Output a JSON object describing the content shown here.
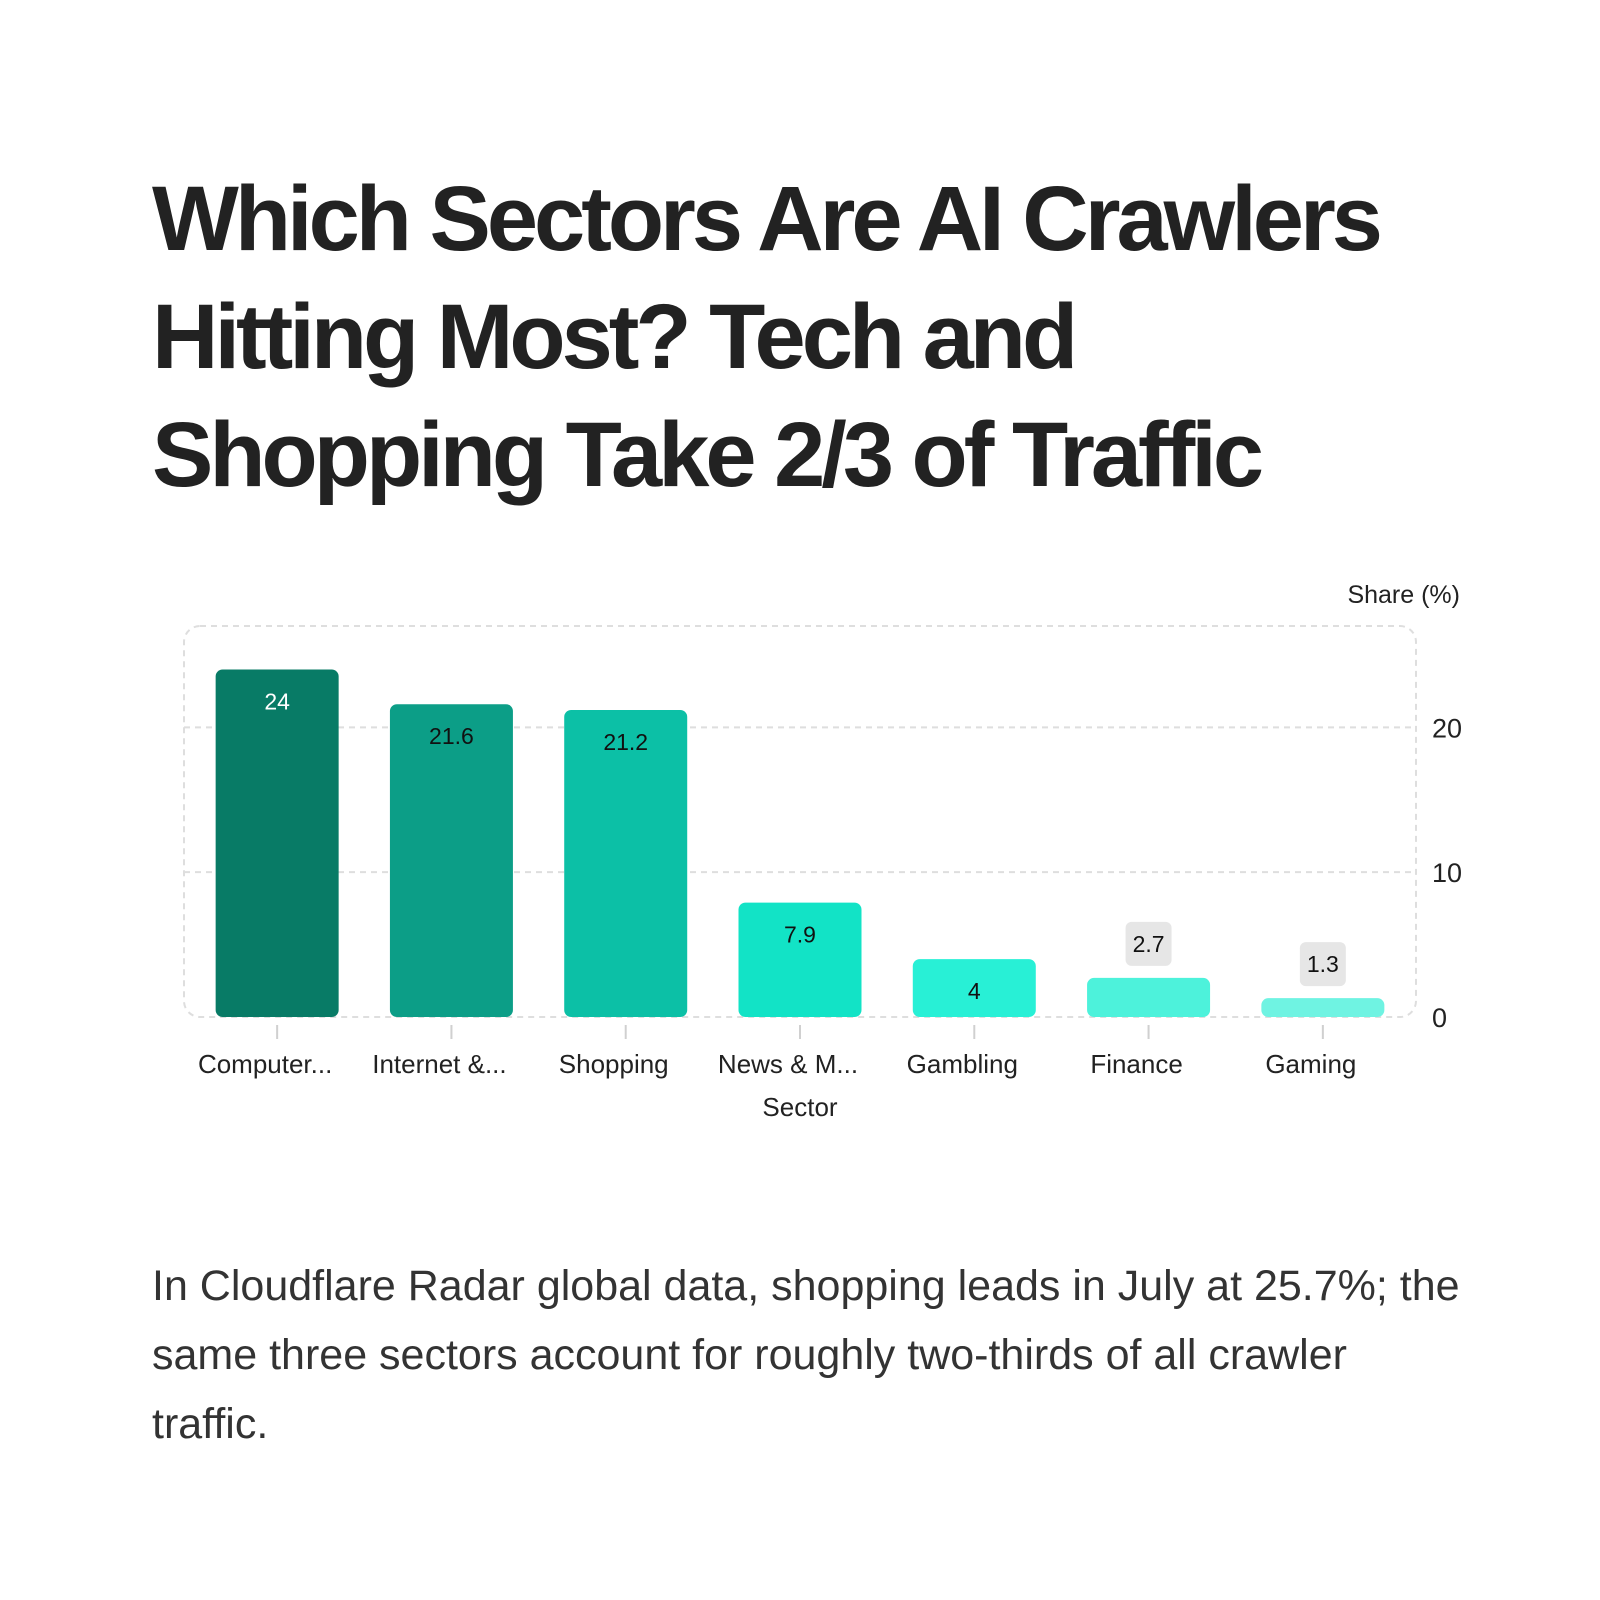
{
  "title": "Which Sectors Are AI Crawlers Hitting Most? Tech and Shopping Take 2/3 of Traffic",
  "caption": "In Cloudflare Radar global data, shopping leads in July at 25.7%; the same three sectors account for roughly two-thirds of all crawler traffic.",
  "chart_data": {
    "type": "bar",
    "categories": [
      "Computer...",
      "Internet &...",
      "Shopping",
      "News & M...",
      "Gambling",
      "Finance",
      "Gaming"
    ],
    "values": [
      24,
      21.6,
      21.2,
      7.9,
      4,
      2.7,
      1.3
    ],
    "data_labels": [
      "24",
      "21.6",
      "21.2",
      "7.9",
      "4",
      "2.7",
      "1.3"
    ],
    "bar_colors": [
      "#087b66",
      "#0c9e87",
      "#0cc0a6",
      "#12e3c6",
      "#28f0d6",
      "#4df2db",
      "#6ff3e2"
    ],
    "label_colors": [
      "#ffffff",
      "#111111",
      "#111111",
      "#111111",
      "#111111",
      "#111111",
      "#111111"
    ],
    "xlabel": "Sector",
    "ylabel": "Share (%)",
    "ylim": [
      0,
      27
    ],
    "yticks": [
      0,
      10,
      20
    ],
    "ytick_labels": [
      "0",
      "10",
      "20"
    ],
    "y_axis_side": "right",
    "grid": true
  }
}
